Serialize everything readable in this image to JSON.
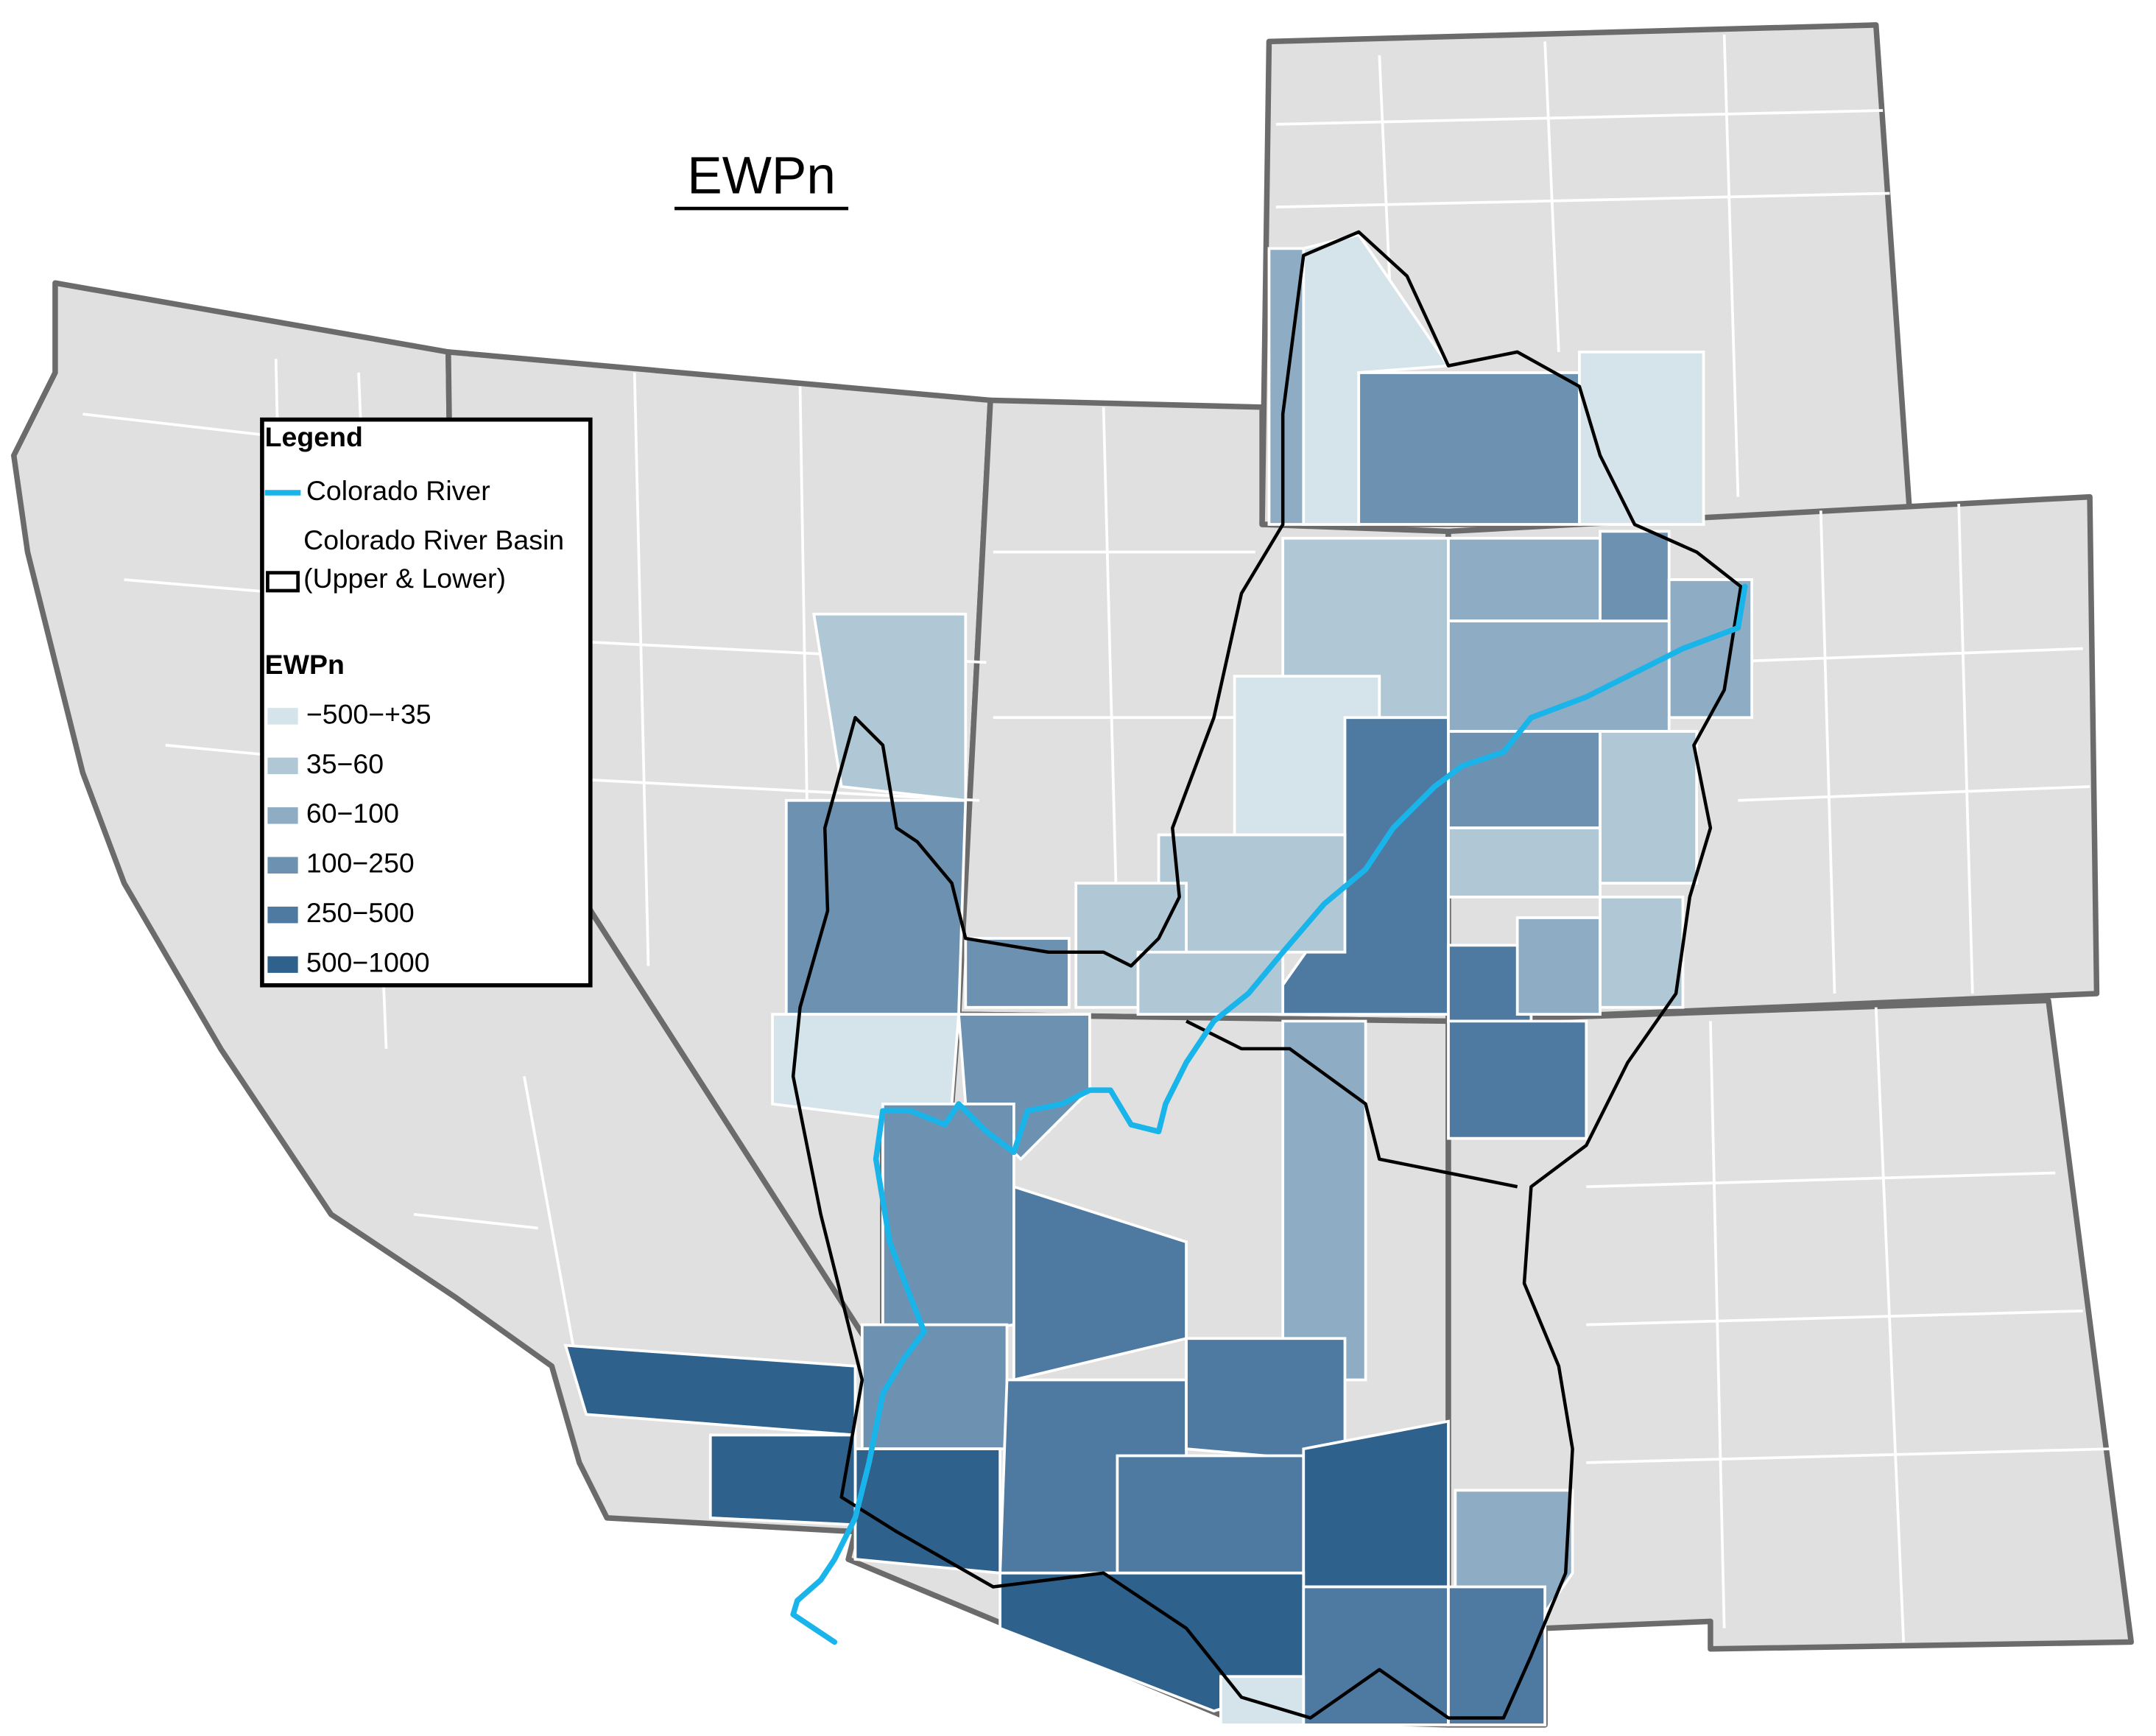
{
  "title": "EWPn",
  "legend": {
    "title": "Legend",
    "river": {
      "label": "Colorado River",
      "color": "#19b5ea"
    },
    "basin": {
      "label": "Colorado River Basin (Upper & Lower)"
    },
    "scale_title": "EWPn",
    "classes": [
      {
        "label": "−500−+35",
        "color": "#d5e3ea"
      },
      {
        "label": "35−60",
        "color": "#b0c7d6"
      },
      {
        "label": "60−100",
        "color": "#8eacc3"
      },
      {
        "label": "100−250",
        "color": "#6d91b1"
      },
      {
        "label": "250−500",
        "color": "#4e79a1"
      },
      {
        "label": "500−1000",
        "color": "#2e628c"
      }
    ]
  }
}
